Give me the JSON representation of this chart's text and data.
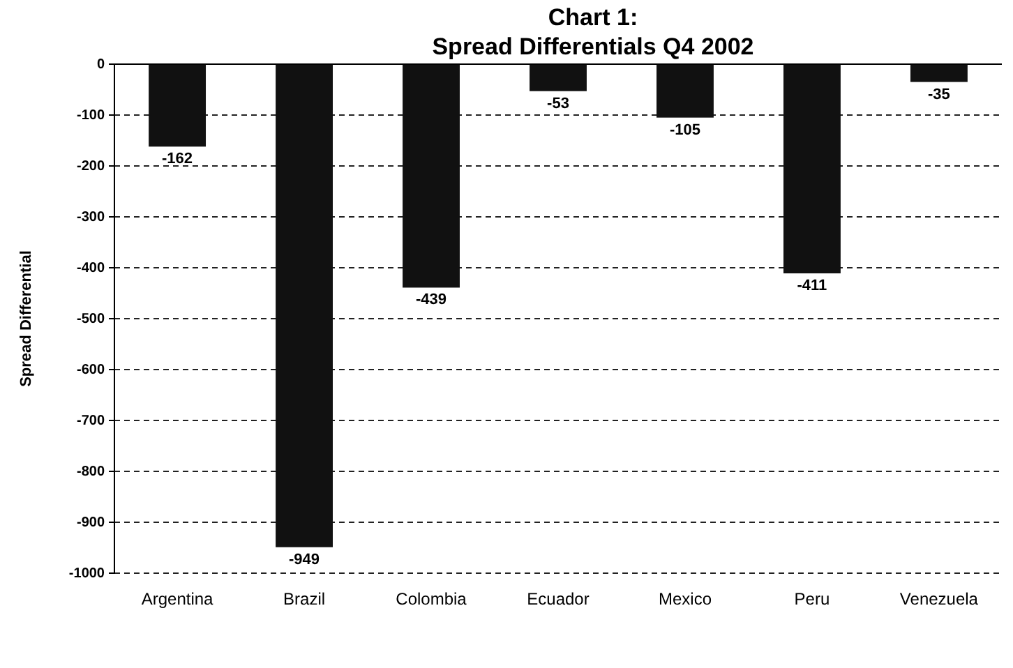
{
  "chart_data": {
    "type": "bar",
    "title": "Chart 1:\nSpread Differentials Q4 2002",
    "ylabel": "Spread Differential",
    "categories": [
      "Argentina",
      "Brazil",
      "Colombia",
      "Ecuador",
      "Mexico",
      "Peru",
      "Venezuela"
    ],
    "values": [
      -162,
      -949,
      -439,
      -53,
      -105,
      -411,
      -35
    ],
    "color": "#111111",
    "ylim": [
      -1000,
      0
    ],
    "yticks": [
      -1000,
      -900,
      -800,
      -700,
      -600,
      -500,
      -400,
      -300,
      -200,
      -100,
      0
    ],
    "grid": "y",
    "data_labels": true
  }
}
